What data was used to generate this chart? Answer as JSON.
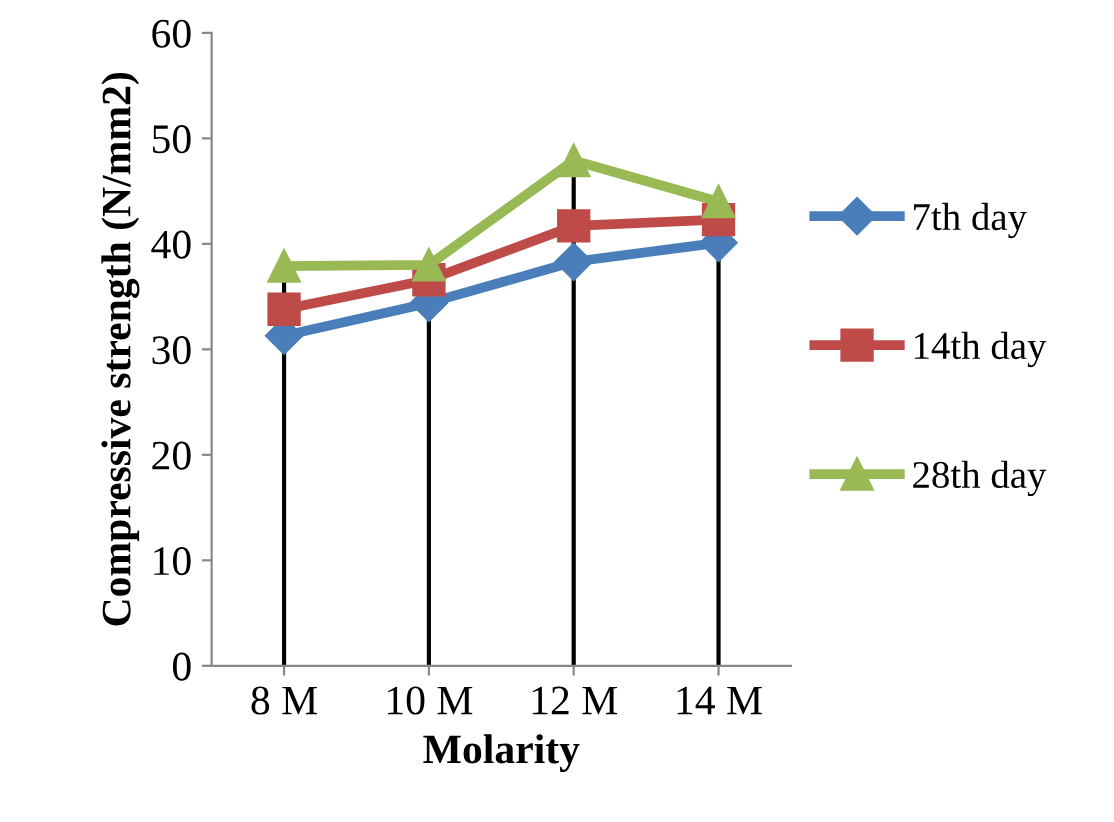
{
  "chart_data": {
    "type": "line",
    "xlabel": "Molarity",
    "ylabel": "Compressive strength (N/mm2)",
    "categories": [
      "8 M",
      "10 M",
      "12 M",
      "14 M"
    ],
    "series": [
      {
        "name": "7th day",
        "color": "#4a7ebb",
        "marker": "diamond",
        "values": [
          31.3,
          34.4,
          38.3,
          40.1
        ]
      },
      {
        "name": "14th day",
        "color": "#be4b48",
        "marker": "square",
        "values": [
          33.8,
          36.6,
          41.7,
          42.3
        ]
      },
      {
        "name": "28th day",
        "color": "#98b954",
        "marker": "triangle",
        "values": [
          37.9,
          38.0,
          47.9,
          44.0
        ]
      }
    ],
    "ref_lines": [
      {
        "axis": "x",
        "value": "8 M",
        "color": "#000000"
      },
      {
        "axis": "x",
        "value": "10 M",
        "color": "#000000"
      },
      {
        "axis": "x",
        "value": "12 M",
        "color": "#000000"
      },
      {
        "axis": "x",
        "value": "14 M",
        "color": "#000000"
      }
    ],
    "ylim": [
      0,
      60
    ],
    "yticks": [
      0,
      10,
      20,
      30,
      40,
      50,
      60
    ],
    "grid": false,
    "legend": "right"
  }
}
